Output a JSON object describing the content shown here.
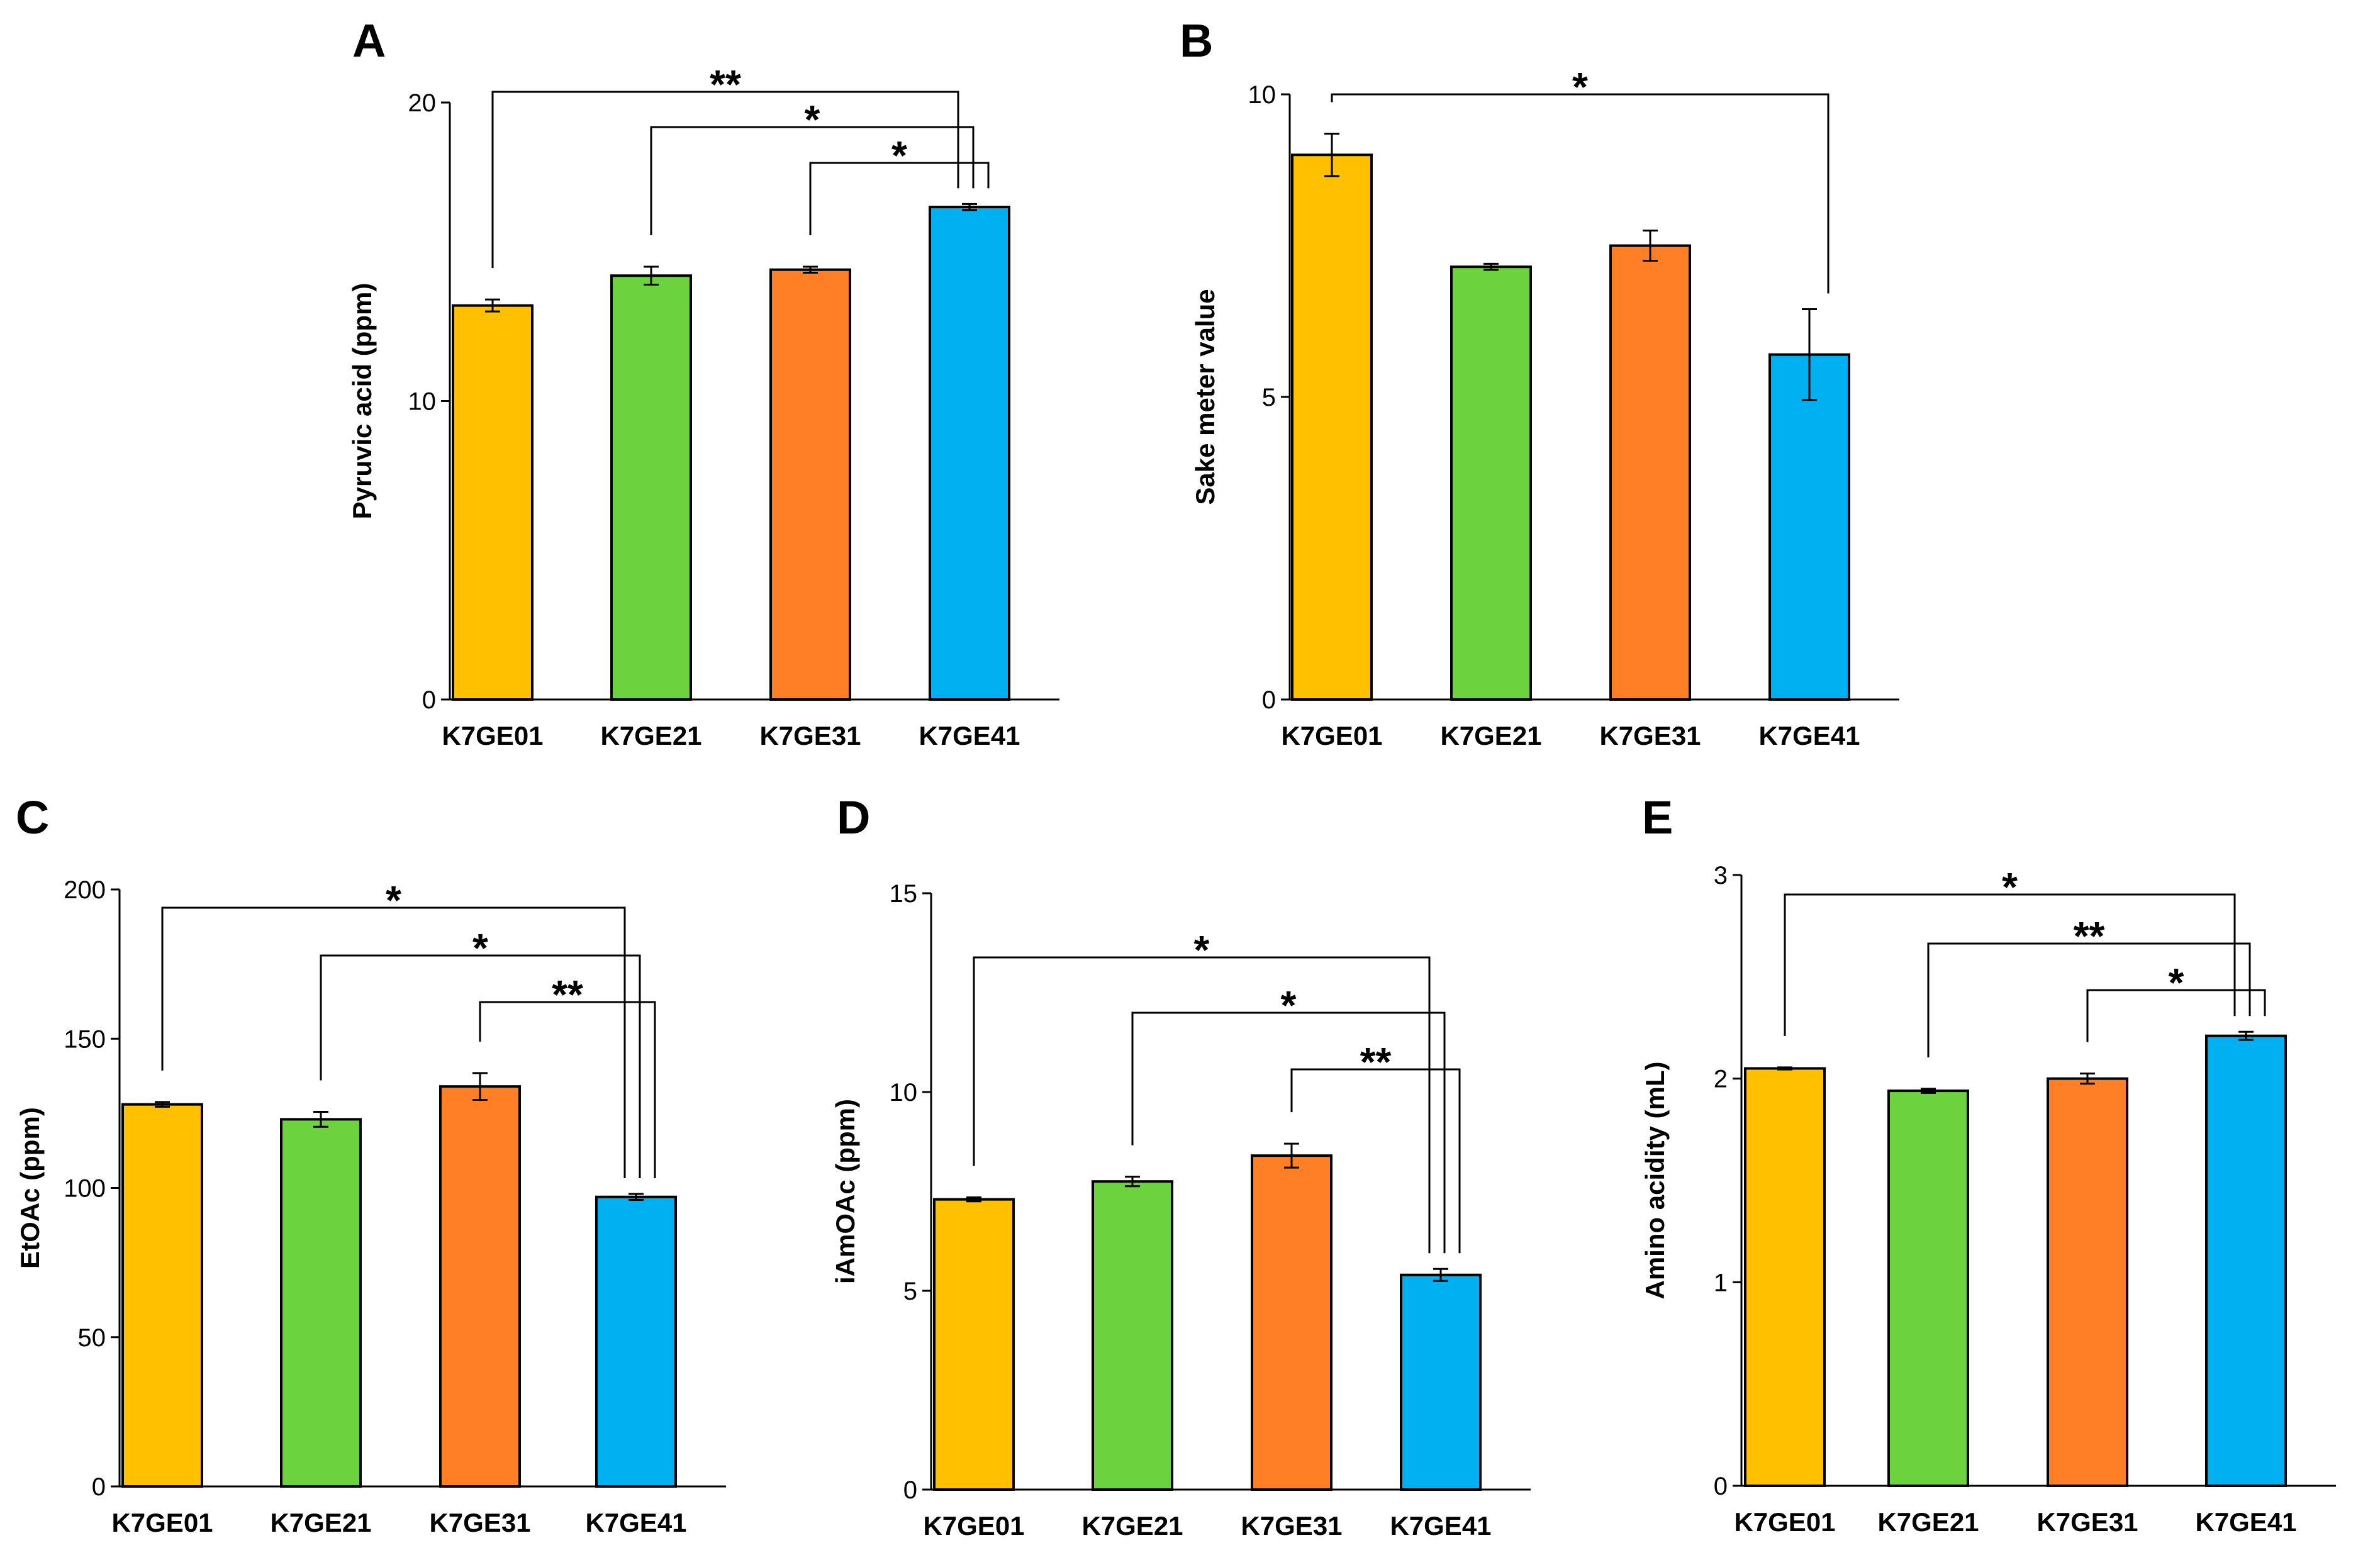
{
  "figure": {
    "bar_colors": [
      "#FFC000",
      "#6CD33E",
      "#FF7F27",
      "#00B0F0"
    ]
  },
  "chart_data": [
    {
      "panel": "A",
      "type": "bar",
      "ylabel": "Pyruvic acid (ppm)",
      "categories": [
        "K7GE01",
        "K7GE21",
        "K7GE31",
        "K7GE41"
      ],
      "values": [
        13.2,
        14.2,
        14.4,
        16.5
      ],
      "errors": [
        0.2,
        0.3,
        0.1,
        0.1
      ],
      "ylim": [
        0,
        20
      ],
      "yticks": [
        "0",
        "10",
        "20"
      ],
      "significance": [
        {
          "from": 0,
          "to": 3,
          "label": "**"
        },
        {
          "from": 1,
          "to": 3,
          "label": "*"
        },
        {
          "from": 2,
          "to": 3,
          "label": "*"
        }
      ]
    },
    {
      "panel": "B",
      "type": "bar",
      "ylabel": "Sake meter value",
      "categories": [
        "K7GE01",
        "K7GE21",
        "K7GE31",
        "K7GE41"
      ],
      "values": [
        9.0,
        7.15,
        7.5,
        5.7
      ],
      "errors": [
        0.35,
        0.05,
        0.25,
        0.75
      ],
      "ylim": [
        0,
        10
      ],
      "yticks": [
        "0",
        "5",
        "10"
      ],
      "significance": [
        {
          "from": 0,
          "to": 3,
          "label": "*"
        }
      ]
    },
    {
      "panel": "C",
      "type": "bar",
      "ylabel": "EtOAc (ppm)",
      "categories": [
        "K7GE01",
        "K7GE21",
        "K7GE31",
        "K7GE41"
      ],
      "values": [
        128,
        123,
        134,
        97
      ],
      "errors": [
        0.8,
        2.5,
        4.5,
        1.0
      ],
      "ylim": [
        0,
        200
      ],
      "yticks": [
        "0",
        "50",
        "100",
        "150",
        "200"
      ],
      "significance": [
        {
          "from": 0,
          "to": 3,
          "label": "*"
        },
        {
          "from": 1,
          "to": 3,
          "label": "*"
        },
        {
          "from": 2,
          "to": 3,
          "label": "**"
        }
      ]
    },
    {
      "panel": "D",
      "type": "bar",
      "ylabel": "iAmOAc (ppm)",
      "categories": [
        "K7GE01",
        "K7GE21",
        "K7GE31",
        "K7GE41"
      ],
      "values": [
        7.3,
        7.75,
        8.4,
        5.4
      ],
      "errors": [
        0.05,
        0.12,
        0.3,
        0.15
      ],
      "ylim": [
        0,
        15
      ],
      "yticks": [
        "0",
        "5",
        "10",
        "15"
      ],
      "significance": [
        {
          "from": 0,
          "to": 3,
          "label": "*"
        },
        {
          "from": 1,
          "to": 3,
          "label": "*"
        },
        {
          "from": 2,
          "to": 3,
          "label": "**"
        }
      ]
    },
    {
      "panel": "E",
      "type": "bar",
      "ylabel": "Amino acidity (mL)",
      "categories": [
        "K7GE01",
        "K7GE21",
        "K7GE31",
        "K7GE41"
      ],
      "values": [
        2.05,
        1.94,
        2.0,
        2.21
      ],
      "errors": [
        0.005,
        0.01,
        0.025,
        0.02
      ],
      "ylim": [
        0,
        3
      ],
      "yticks": [
        "0",
        "1",
        "2",
        "3"
      ],
      "significance": [
        {
          "from": 0,
          "to": 3,
          "label": "*"
        },
        {
          "from": 1,
          "to": 3,
          "label": "**"
        },
        {
          "from": 2,
          "to": 3,
          "label": "*"
        }
      ]
    }
  ]
}
